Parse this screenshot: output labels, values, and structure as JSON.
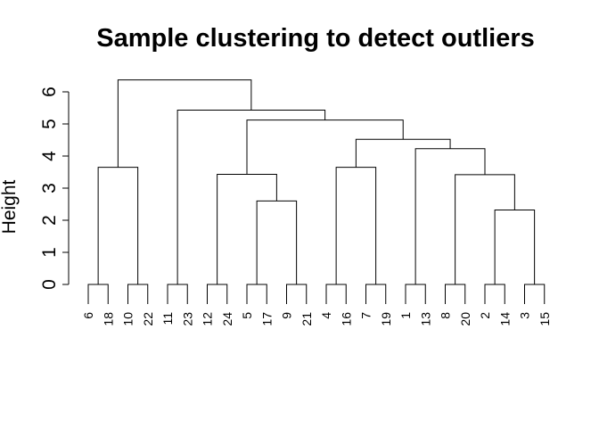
{
  "chart_data": {
    "type": "dendrogram",
    "title": "Sample clustering to detect outliers",
    "xlabel": "",
    "ylabel": "Height",
    "ylim": [
      0,
      6.5
    ],
    "yticks": [
      0,
      1,
      2,
      3,
      4,
      5,
      6
    ],
    "leaf_order": [
      "6",
      "18",
      "10",
      "22",
      "11",
      "23",
      "12",
      "24",
      "5",
      "17",
      "9",
      "21",
      "4",
      "16",
      "7",
      "19",
      "1",
      "13",
      "8",
      "20",
      "2",
      "14",
      "3",
      "15"
    ],
    "leaf_pair_height": 0,
    "merges": [
      {
        "id": "m6",
        "left": "pair:0",
        "right": "pair:1",
        "height": 3.65
      },
      {
        "id": "m3",
        "left": "pair:4",
        "right": "pair:5",
        "height": 2.6
      },
      {
        "id": "m5",
        "left": "pair:3",
        "right": "m3",
        "height": 3.43
      },
      {
        "id": "m1",
        "left": "pair:10",
        "right": "pair:11",
        "height": 2.32
      },
      {
        "id": "m2",
        "left": "pair:9",
        "right": "m1",
        "height": 3.42
      },
      {
        "id": "m7",
        "left": "pair:8",
        "right": "m2",
        "height": 4.23
      },
      {
        "id": "m4",
        "left": "pair:6",
        "right": "pair:7",
        "height": 3.65
      },
      {
        "id": "m8",
        "left": "m4",
        "right": "m7",
        "height": 4.52
      },
      {
        "id": "m9",
        "left": "m5",
        "right": "m8",
        "height": 5.12
      },
      {
        "id": "m10",
        "left": "pair:2",
        "right": "m9",
        "height": 5.43
      },
      {
        "id": "m11",
        "left": "m6",
        "right": "m10",
        "height": 6.37
      }
    ]
  }
}
